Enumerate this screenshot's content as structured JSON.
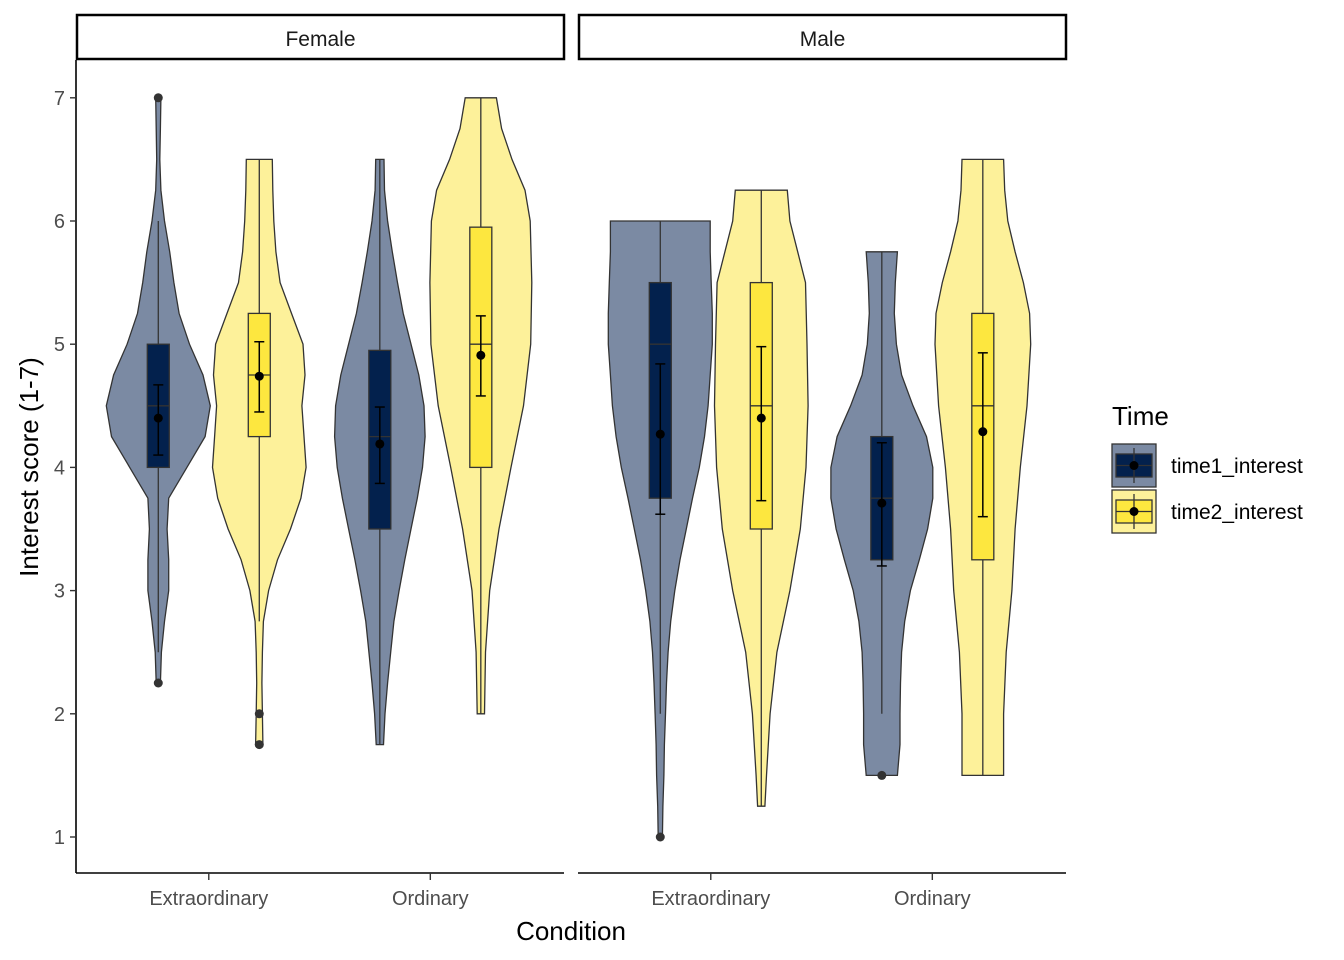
{
  "chart_data": {
    "type": "violin",
    "xlabel": "Condition",
    "ylabel": "Interest score (1-7)",
    "ylim": [
      0.7,
      7.3
    ],
    "yticks": [
      "1",
      "2",
      "3",
      "4",
      "5",
      "6",
      "7"
    ],
    "grid": false,
    "legend": {
      "title": "Time",
      "position": "right",
      "entries": [
        {
          "label": "time1_interest",
          "fill_dark": "#03214d",
          "fill_light": "#7b8aa3"
        },
        {
          "label": "time2_interest",
          "fill_dark": "#fde73f",
          "fill_light": "#fdf19a"
        }
      ]
    },
    "panels": [
      {
        "label": "Female",
        "categories": [
          "Extraordinary",
          "Ordinary"
        ],
        "groups": [
          {
            "condition": "Extraordinary",
            "series": "time1_interest",
            "min": 2.25,
            "max": 7,
            "q1": 4,
            "median": 4.5,
            "q3": 5,
            "whisker_low": 2.5,
            "whisker_high": 6,
            "mean": 4.4,
            "ci_low": 4.1,
            "ci_high": 4.67,
            "outliers": [
              2.25,
              7
            ],
            "density": [
              [
                2.25,
                0.04
              ],
              [
                2.5,
                0.06
              ],
              [
                2.75,
                0.12
              ],
              [
                3,
                0.2
              ],
              [
                3.25,
                0.2
              ],
              [
                3.5,
                0.17
              ],
              [
                3.75,
                0.2
              ],
              [
                4,
                0.55
              ],
              [
                4.25,
                0.9
              ],
              [
                4.5,
                1
              ],
              [
                4.75,
                0.86
              ],
              [
                5,
                0.6
              ],
              [
                5.25,
                0.4
              ],
              [
                5.5,
                0.3
              ],
              [
                5.75,
                0.22
              ],
              [
                6,
                0.12
              ],
              [
                6.25,
                0.05
              ],
              [
                6.5,
                0.03
              ],
              [
                6.75,
                0.04
              ],
              [
                7,
                0.05
              ]
            ]
          },
          {
            "condition": "Extraordinary",
            "series": "time2_interest",
            "min": 1.75,
            "max": 6.5,
            "q1": 4.25,
            "median": 4.75,
            "q3": 5.25,
            "whisker_low": 2.75,
            "whisker_high": 6.5,
            "mean": 4.74,
            "ci_low": 4.45,
            "ci_high": 5.02,
            "outliers": [
              1.75,
              2
            ],
            "density": [
              [
                1.75,
                0.07
              ],
              [
                2,
                0.06
              ],
              [
                2.25,
                0.05
              ],
              [
                2.5,
                0.06
              ],
              [
                2.75,
                0.08
              ],
              [
                3,
                0.18
              ],
              [
                3.25,
                0.35
              ],
              [
                3.5,
                0.6
              ],
              [
                3.75,
                0.8
              ],
              [
                4,
                0.9
              ],
              [
                4.25,
                0.86
              ],
              [
                4.5,
                0.82
              ],
              [
                4.75,
                0.88
              ],
              [
                5,
                0.84
              ],
              [
                5.25,
                0.62
              ],
              [
                5.5,
                0.4
              ],
              [
                5.75,
                0.32
              ],
              [
                6,
                0.28
              ],
              [
                6.25,
                0.26
              ],
              [
                6.5,
                0.25
              ]
            ]
          },
          {
            "condition": "Ordinary",
            "series": "time1_interest",
            "min": 1.75,
            "max": 6.5,
            "q1": 3.5,
            "median": 4.25,
            "q3": 4.95,
            "whisker_low": 1.75,
            "whisker_high": 6.5,
            "mean": 4.19,
            "ci_low": 3.87,
            "ci_high": 4.49,
            "outliers": [],
            "density": [
              [
                1.75,
                0.07
              ],
              [
                2,
                0.1
              ],
              [
                2.25,
                0.15
              ],
              [
                2.5,
                0.21
              ],
              [
                2.75,
                0.27
              ],
              [
                3,
                0.37
              ],
              [
                3.25,
                0.48
              ],
              [
                3.5,
                0.6
              ],
              [
                3.75,
                0.72
              ],
              [
                4,
                0.82
              ],
              [
                4.25,
                0.87
              ],
              [
                4.5,
                0.85
              ],
              [
                4.75,
                0.75
              ],
              [
                5,
                0.6
              ],
              [
                5.25,
                0.45
              ],
              [
                5.5,
                0.34
              ],
              [
                5.75,
                0.24
              ],
              [
                6,
                0.15
              ],
              [
                6.25,
                0.09
              ],
              [
                6.5,
                0.08
              ]
            ]
          },
          {
            "condition": "Ordinary",
            "series": "time2_interest",
            "min": 2,
            "max": 7,
            "q1": 4,
            "median": 5,
            "q3": 5.95,
            "whisker_low": 2,
            "whisker_high": 7,
            "mean": 4.91,
            "ci_low": 4.58,
            "ci_high": 5.23,
            "outliers": [],
            "density": [
              [
                2,
                0.07
              ],
              [
                2.5,
                0.09
              ],
              [
                3,
                0.17
              ],
              [
                3.5,
                0.35
              ],
              [
                4,
                0.58
              ],
              [
                4.5,
                0.82
              ],
              [
                5,
                0.96
              ],
              [
                5.5,
                0.98
              ],
              [
                6,
                0.95
              ],
              [
                6.25,
                0.85
              ],
              [
                6.5,
                0.6
              ],
              [
                6.75,
                0.4
              ],
              [
                7,
                0.3
              ]
            ]
          }
        ]
      },
      {
        "label": "Male",
        "categories": [
          "Extraordinary",
          "Ordinary"
        ],
        "groups": [
          {
            "condition": "Extraordinary",
            "series": "time1_interest",
            "min": 1,
            "max": 6,
            "q1": 3.75,
            "median": 5,
            "q3": 5.5,
            "whisker_low": 2,
            "whisker_high": 6,
            "mean": 4.27,
            "ci_low": 3.62,
            "ci_high": 4.84,
            "outliers": [
              1
            ],
            "density": [
              [
                1,
                0.04
              ],
              [
                1.25,
                0.05
              ],
              [
                1.5,
                0.07
              ],
              [
                1.75,
                0.08
              ],
              [
                2,
                0.1
              ],
              [
                2.25,
                0.12
              ],
              [
                2.5,
                0.15
              ],
              [
                2.75,
                0.2
              ],
              [
                3,
                0.28
              ],
              [
                3.25,
                0.38
              ],
              [
                3.5,
                0.5
              ],
              [
                3.75,
                0.62
              ],
              [
                4,
                0.75
              ],
              [
                4.25,
                0.85
              ],
              [
                4.5,
                0.92
              ],
              [
                4.75,
                0.96
              ],
              [
                5,
                1
              ],
              [
                5.25,
                1
              ],
              [
                5.5,
                0.98
              ],
              [
                5.75,
                0.96
              ],
              [
                6,
                0.96
              ]
            ]
          },
          {
            "condition": "Extraordinary",
            "series": "time2_interest",
            "min": 1.25,
            "max": 6.25,
            "q1": 3.5,
            "median": 4.5,
            "q3": 5.5,
            "whisker_low": 1.25,
            "whisker_high": 6.25,
            "mean": 4.4,
            "ci_low": 3.73,
            "ci_high": 4.98,
            "outliers": [],
            "density": [
              [
                1.25,
                0.07
              ],
              [
                1.5,
                0.1
              ],
              [
                2,
                0.17
              ],
              [
                2.5,
                0.3
              ],
              [
                3,
                0.55
              ],
              [
                3.5,
                0.75
              ],
              [
                4,
                0.86
              ],
              [
                4.5,
                0.9
              ],
              [
                5,
                0.88
              ],
              [
                5.5,
                0.85
              ],
              [
                5.75,
                0.7
              ],
              [
                6,
                0.55
              ],
              [
                6.25,
                0.5
              ]
            ]
          },
          {
            "condition": "Ordinary",
            "series": "time1_interest",
            "min": 1.5,
            "max": 5.75,
            "q1": 3.25,
            "median": 3.75,
            "q3": 4.25,
            "whisker_low": 2,
            "whisker_high": 5.75,
            "mean": 3.71,
            "ci_low": 3.2,
            "ci_high": 4.2,
            "outliers": [
              1.5
            ],
            "density": [
              [
                1.5,
                0.3
              ],
              [
                1.75,
                0.35
              ],
              [
                2,
                0.35
              ],
              [
                2.25,
                0.36
              ],
              [
                2.5,
                0.38
              ],
              [
                2.75,
                0.44
              ],
              [
                3,
                0.55
              ],
              [
                3.25,
                0.72
              ],
              [
                3.5,
                0.88
              ],
              [
                3.75,
                0.98
              ],
              [
                4,
                0.98
              ],
              [
                4.25,
                0.86
              ],
              [
                4.5,
                0.6
              ],
              [
                4.75,
                0.38
              ],
              [
                5,
                0.28
              ],
              [
                5.25,
                0.24
              ],
              [
                5.5,
                0.26
              ],
              [
                5.75,
                0.3
              ]
            ]
          },
          {
            "condition": "Ordinary",
            "series": "time2_interest",
            "min": 1.5,
            "max": 6.5,
            "q1": 3.25,
            "median": 4.5,
            "q3": 5.25,
            "whisker_low": 1.5,
            "whisker_high": 6.5,
            "mean": 4.29,
            "ci_low": 3.6,
            "ci_high": 4.93,
            "outliers": [],
            "density": [
              [
                1.5,
                0.4
              ],
              [
                2,
                0.4
              ],
              [
                2.5,
                0.45
              ],
              [
                3,
                0.56
              ],
              [
                3.5,
                0.62
              ],
              [
                4,
                0.72
              ],
              [
                4.5,
                0.85
              ],
              [
                5,
                0.92
              ],
              [
                5.25,
                0.9
              ],
              [
                5.5,
                0.78
              ],
              [
                5.75,
                0.62
              ],
              [
                6,
                0.48
              ],
              [
                6.25,
                0.42
              ],
              [
                6.5,
                0.4
              ]
            ]
          }
        ]
      }
    ]
  }
}
